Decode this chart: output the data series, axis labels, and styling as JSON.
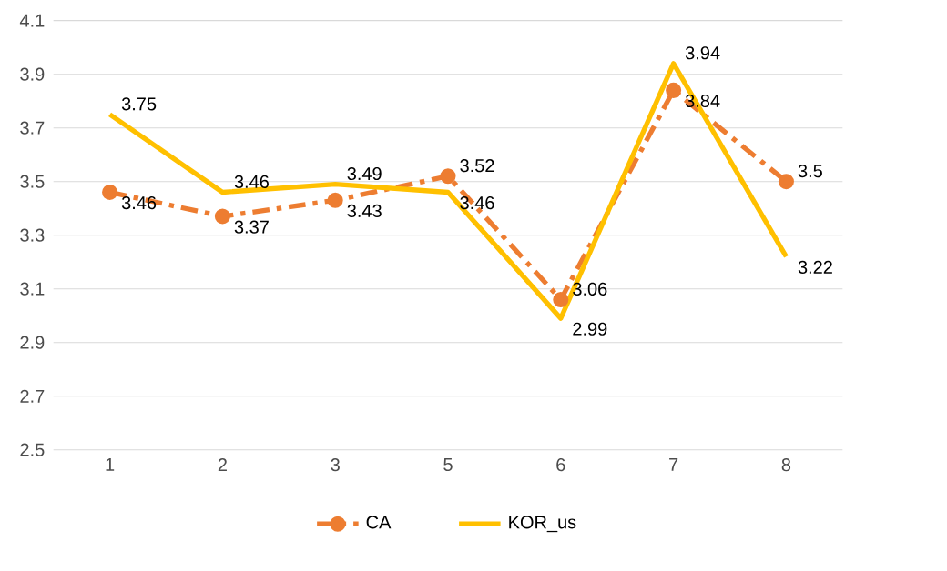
{
  "chart_data": {
    "type": "line",
    "categories": [
      "1",
      "2",
      "3",
      "5",
      "6",
      "7",
      "8"
    ],
    "series": [
      {
        "name": "CA",
        "color": "#ed7d31",
        "values": [
          3.46,
          3.37,
          3.43,
          3.52,
          3.06,
          3.84,
          3.5
        ],
        "marker": "circle",
        "line_style": "dashed"
      },
      {
        "name": "KOR_us",
        "color": "#ffc000",
        "values": [
          3.75,
          3.46,
          3.49,
          3.46,
          2.99,
          3.94,
          3.22
        ],
        "marker": "none",
        "line_style": "solid"
      }
    ],
    "ylim": [
      2.5,
      4.1
    ],
    "yticks": [
      2.5,
      2.7,
      2.9,
      3.1,
      3.3,
      3.5,
      3.7,
      3.9,
      4.1
    ],
    "grid": "y",
    "legend": "bottom",
    "data_labels": true
  }
}
